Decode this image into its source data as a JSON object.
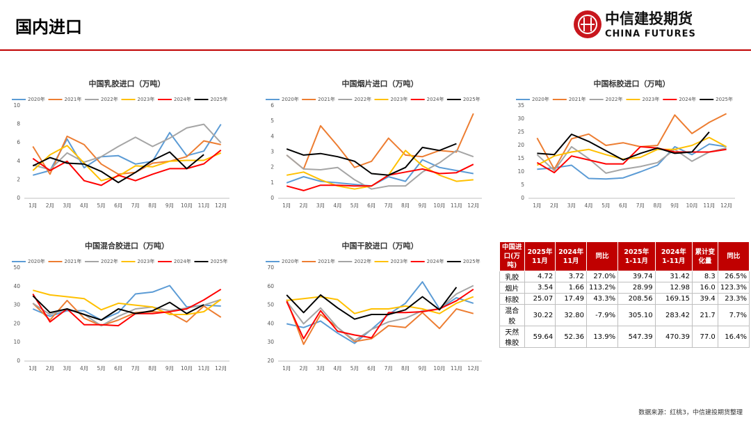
{
  "header": {
    "title": "国内进口",
    "logo_cn": "中信建投期货",
    "logo_en": "CHINA FUTURES"
  },
  "chart_data": [
    {
      "type": "line",
      "title": "中国乳胶进口（万吨）",
      "categories": [
        "1月",
        "2月",
        "3月",
        "4月",
        "5月",
        "6月",
        "7月",
        "8月",
        "9月",
        "10月",
        "11月",
        "12月"
      ],
      "ylim": [
        0,
        10
      ],
      "yticks": [
        0,
        2,
        4,
        6,
        8,
        10
      ],
      "grid": false,
      "series": [
        {
          "name": "2020年",
          "color": "#5b9bd5",
          "values": [
            2.5,
            3.0,
            6.4,
            3.3,
            4.5,
            4.6,
            3.7,
            4.0,
            7.1,
            4.6,
            5.1,
            8.0
          ]
        },
        {
          "name": "2021年",
          "color": "#ed7d31",
          "values": [
            5.6,
            2.6,
            6.7,
            5.8,
            3.7,
            2.6,
            2.8,
            3.8,
            4.0,
            4.5,
            6.2,
            5.8
          ]
        },
        {
          "name": "2022年",
          "color": "#a5a5a5",
          "values": [
            3.6,
            3.1,
            4.9,
            3.9,
            4.5,
            5.6,
            6.6,
            5.6,
            6.5,
            7.6,
            8.0,
            6.0
          ]
        },
        {
          "name": "2023年",
          "color": "#ffc000",
          "values": [
            3.0,
            4.7,
            5.7,
            3.8,
            1.9,
            2.4,
            3.5,
            3.4,
            4.0,
            4.1,
            4.1,
            4.9
          ]
        },
        {
          "name": "2024年",
          "color": "#ff0000",
          "values": [
            4.3,
            3.0,
            4.0,
            1.9,
            1.4,
            2.5,
            1.9,
            2.6,
            3.2,
            3.2,
            3.72,
            5.2
          ]
        },
        {
          "name": "2025年",
          "color": "#000000",
          "values": [
            3.5,
            4.4,
            3.8,
            3.7,
            2.9,
            1.7,
            2.8,
            4.1,
            5.0,
            3.2,
            4.72,
            null
          ]
        }
      ]
    },
    {
      "type": "line",
      "title": "中国烟片进口（万吨）",
      "categories": [
        "1月",
        "2月",
        "3月",
        "4月",
        "5月",
        "6月",
        "7月",
        "8月",
        "9月",
        "10月",
        "11月",
        "12月"
      ],
      "ylim": [
        0,
        6
      ],
      "yticks": [
        0,
        1,
        2,
        3,
        4,
        5,
        6
      ],
      "grid": false,
      "series": [
        {
          "name": "2020年",
          "color": "#5b9bd5",
          "values": [
            1.0,
            1.4,
            1.1,
            1.0,
            0.9,
            0.8,
            1.4,
            1.1,
            2.5,
            2.0,
            1.8,
            1.6
          ]
        },
        {
          "name": "2021年",
          "color": "#ed7d31",
          "values": [
            2.8,
            1.9,
            4.7,
            3.4,
            2.0,
            2.4,
            3.9,
            2.8,
            2.7,
            3.1,
            3.0,
            5.5
          ]
        },
        {
          "name": "2022年",
          "color": "#a5a5a5",
          "values": [
            2.8,
            1.9,
            1.85,
            2.0,
            1.2,
            0.6,
            0.8,
            0.8,
            1.7,
            2.3,
            3.1,
            2.7
          ]
        },
        {
          "name": "2023年",
          "color": "#ffc000",
          "values": [
            1.5,
            1.7,
            1.2,
            0.8,
            0.6,
            0.8,
            1.5,
            3.1,
            2.1,
            1.5,
            1.1,
            1.2
          ]
        },
        {
          "name": "2024年",
          "color": "#ff0000",
          "values": [
            0.8,
            0.5,
            0.85,
            0.85,
            0.8,
            0.8,
            1.5,
            1.7,
            1.9,
            1.6,
            1.66,
            2.2
          ]
        },
        {
          "name": "2025年",
          "color": "#000000",
          "values": [
            3.2,
            2.8,
            2.9,
            2.7,
            2.4,
            1.6,
            1.5,
            2.0,
            3.3,
            3.1,
            3.54,
            null
          ]
        }
      ]
    },
    {
      "type": "line",
      "title": "中国标胶进口（万吨）",
      "categories": [
        "1月",
        "2月",
        "3月",
        "4月",
        "5月",
        "6月",
        "7月",
        "8月",
        "9月",
        "10月",
        "11月",
        "12月"
      ],
      "ylim": [
        0,
        35
      ],
      "yticks": [
        0,
        5,
        10,
        15,
        20,
        25,
        30,
        35
      ],
      "grid": false,
      "series": [
        {
          "name": "2020年",
          "color": "#5b9bd5",
          "values": [
            11,
            11.5,
            12.5,
            7.5,
            7.3,
            7.7,
            10,
            12.5,
            19.5,
            16.5,
            20.5,
            19.5
          ]
        },
        {
          "name": "2021年",
          "color": "#ed7d31",
          "values": [
            22.8,
            11,
            22.5,
            24.3,
            20,
            21,
            19.5,
            20,
            31.5,
            24.5,
            28.7,
            32
          ]
        },
        {
          "name": "2022年",
          "color": "#a5a5a5",
          "values": [
            16.5,
            10.5,
            19.5,
            15,
            9.5,
            11,
            12,
            13.5,
            18.5,
            14,
            17.5,
            19
          ]
        },
        {
          "name": "2023年",
          "color": "#ffc000",
          "values": [
            12.5,
            16,
            17.5,
            18.5,
            16.5,
            14.8,
            15.5,
            18.5,
            18.5,
            20,
            23,
            19.5
          ]
        },
        {
          "name": "2024年",
          "color": "#ff0000",
          "values": [
            13.5,
            9.7,
            16,
            14.5,
            13,
            13,
            19.5,
            19,
            17.5,
            17.5,
            17.49,
            18.5
          ]
        },
        {
          "name": "2025年",
          "color": "#000000",
          "values": [
            17,
            16.5,
            24.2,
            21.5,
            18,
            14.5,
            17,
            19,
            17,
            17.5,
            25.07,
            null
          ]
        }
      ]
    },
    {
      "type": "line",
      "title": "中国混合胶进口（万吨）",
      "categories": [
        "1月",
        "2月",
        "3月",
        "4月",
        "5月",
        "6月",
        "7月",
        "8月",
        "9月",
        "10月",
        "11月",
        "12月"
      ],
      "ylim": [
        0,
        50
      ],
      "yticks": [
        0,
        10,
        20,
        30,
        40,
        50
      ],
      "grid": false,
      "series": [
        {
          "name": "2020年",
          "color": "#5b9bd5",
          "values": [
            28,
            24,
            27,
            27,
            22,
            26,
            36,
            37,
            40.5,
            29,
            30,
            29.5
          ]
        },
        {
          "name": "2021年",
          "color": "#ed7d31",
          "values": [
            31,
            22,
            32.5,
            23,
            19,
            22,
            26,
            26.5,
            26,
            21,
            29.5,
            23.5
          ]
        },
        {
          "name": "2022年",
          "color": "#a5a5a5",
          "values": [
            31,
            25,
            28,
            25,
            19,
            24,
            28,
            29,
            27,
            28.5,
            30,
            33
          ]
        },
        {
          "name": "2023年",
          "color": "#ffc000",
          "values": [
            38,
            35.5,
            34.5,
            33.5,
            27.5,
            31,
            30,
            29,
            25,
            25,
            26.5,
            33
          ]
        },
        {
          "name": "2024年",
          "color": "#ff0000",
          "values": [
            36,
            21,
            28,
            19.5,
            19.5,
            19,
            25.5,
            25.5,
            26.5,
            28,
            32.8,
            38.5
          ]
        },
        {
          "name": "2025年",
          "color": "#000000",
          "values": [
            35,
            26,
            28,
            25,
            22,
            28,
            25.5,
            27,
            31.5,
            25.5,
            30.22,
            null
          ]
        }
      ]
    },
    {
      "type": "line",
      "title": "中国干胶进口（万吨）",
      "categories": [
        "1月",
        "2月",
        "3月",
        "4月",
        "5月",
        "6月",
        "7月",
        "8月",
        "9月",
        "10月",
        "11月",
        "12月"
      ],
      "ylim": [
        20,
        70
      ],
      "yticks": [
        20,
        30,
        40,
        50,
        60,
        70
      ],
      "grid": false,
      "series": [
        {
          "name": "2020年",
          "color": "#5b9bd5",
          "values": [
            40,
            38,
            41.5,
            35,
            29.5,
            37,
            45,
            51,
            62.5,
            48,
            54,
            51
          ]
        },
        {
          "name": "2021年",
          "color": "#ed7d31",
          "values": [
            53,
            29,
            45,
            38,
            30.5,
            32,
            39,
            38,
            46,
            37.5,
            48,
            45.5
          ]
        },
        {
          "name": "2022年",
          "color": "#a5a5a5",
          "values": [
            52,
            40,
            48.5,
            38,
            31,
            37,
            41,
            43,
            47,
            48,
            56,
            60.5
          ]
        },
        {
          "name": "2023年",
          "color": "#ffc000",
          "values": [
            52.5,
            53.5,
            54.5,
            53,
            45.5,
            48,
            48,
            49.5,
            48,
            45.5,
            51,
            54.5
          ]
        },
        {
          "name": "2024年",
          "color": "#ff0000",
          "values": [
            52,
            32,
            47,
            36,
            34,
            32.5,
            46,
            46,
            46.5,
            48,
            52.36,
            58.5
          ]
        },
        {
          "name": "2025年",
          "color": "#000000",
          "values": [
            55.5,
            46,
            55.5,
            48.5,
            42.5,
            45,
            45,
            47.5,
            54.5,
            47.5,
            59.64,
            null
          ]
        }
      ]
    }
  ],
  "table": {
    "header": [
      "中国进口(万吨)",
      "2025年11月",
      "2024年11月",
      "同比",
      "2025年 1-11月",
      "2024年 1-11月",
      "累计变化量",
      "同比"
    ],
    "rows": [
      [
        "乳胶",
        "4.72",
        "3.72",
        "27.0%",
        "39.74",
        "31.42",
        "8.3",
        "26.5%"
      ],
      [
        "烟片",
        "3.54",
        "1.66",
        "113.2%",
        "28.99",
        "12.98",
        "16.0",
        "123.3%"
      ],
      [
        "标胶",
        "25.07",
        "17.49",
        "43.3%",
        "208.56",
        "169.15",
        "39.4",
        "23.3%"
      ],
      [
        "混合胶",
        "30.22",
        "32.80",
        "-7.9%",
        "305.10",
        "283.42",
        "21.7",
        "7.7%"
      ],
      [
        "天然橡胶",
        "59.64",
        "52.36",
        "13.9%",
        "547.39",
        "470.39",
        "77.0",
        "16.4%"
      ]
    ]
  },
  "footer": {
    "source": "数据来源：红桃3，中信建投期货整理"
  }
}
